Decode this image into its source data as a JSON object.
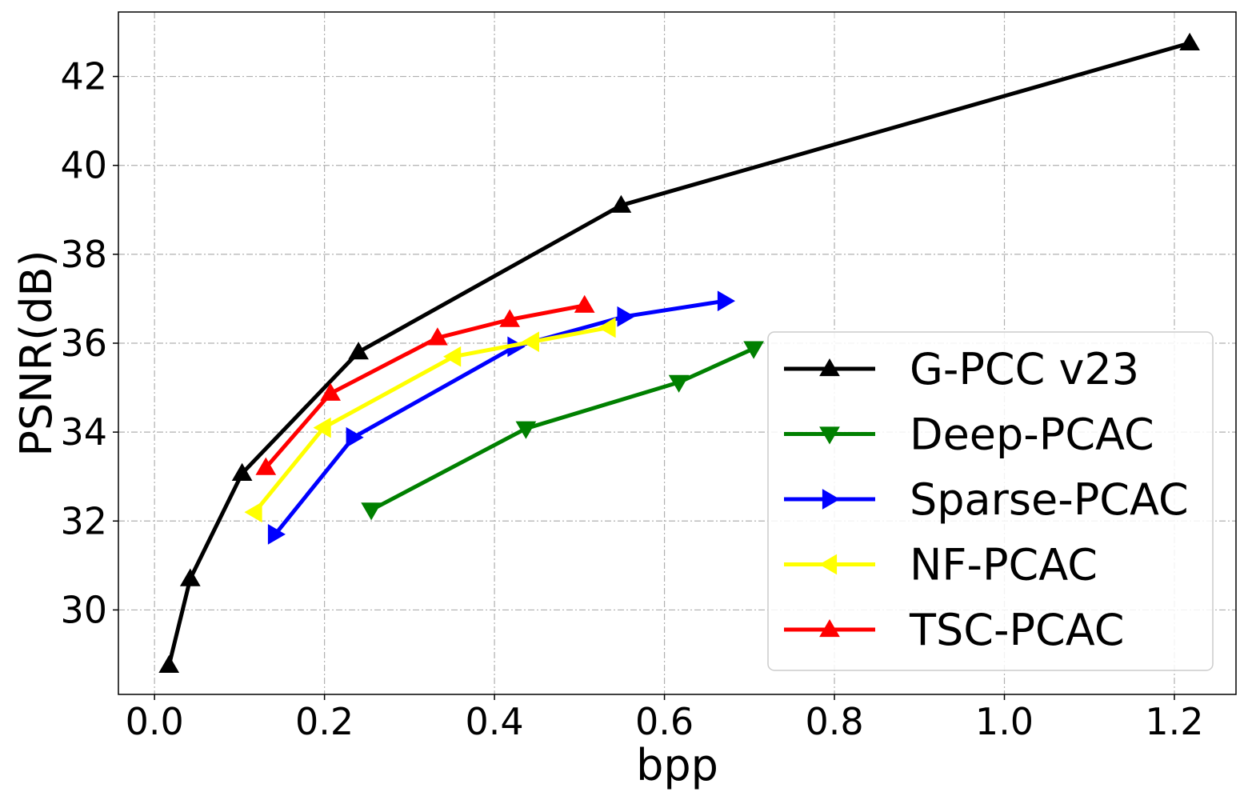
{
  "chart_data": {
    "type": "line",
    "title": "",
    "xlabel": "bpp",
    "ylabel": "PSNR(dB)",
    "xlim": [
      -0.0425,
      1.2725
    ],
    "ylim": [
      28.1,
      43.45
    ],
    "grid": true,
    "legend_position": "lower-right",
    "xticks": [
      0.0,
      0.2,
      0.4,
      0.6,
      0.8,
      1.0,
      1.2
    ],
    "xtick_labels": [
      "0.0",
      "0.2",
      "0.4",
      "0.6",
      "0.8",
      "1.0",
      "1.2"
    ],
    "yticks": [
      30,
      32,
      34,
      36,
      38,
      40,
      42
    ],
    "ytick_labels": [
      "30",
      "32",
      "34",
      "36",
      "38",
      "40",
      "42"
    ],
    "series": [
      {
        "name": "G-PCC v23",
        "color": "#000000",
        "marker": "triangle-up",
        "x": [
          0.017,
          0.042,
          0.103,
          0.24,
          0.549,
          1.218
        ],
        "y": [
          28.75,
          30.7,
          33.07,
          35.8,
          39.1,
          42.75
        ]
      },
      {
        "name": "Deep-PCAC",
        "color": "#008000",
        "marker": "triangle-down",
        "x": [
          0.255,
          0.437,
          0.617,
          0.705
        ],
        "y": [
          32.25,
          34.08,
          35.12,
          35.88
        ]
      },
      {
        "name": "Sparse-PCAC",
        "color": "#0000ff",
        "marker": "triangle-right",
        "x": [
          0.142,
          0.234,
          0.424,
          0.553,
          0.671
        ],
        "y": [
          31.7,
          33.88,
          35.92,
          36.6,
          36.95
        ]
      },
      {
        "name": "NF-PCAC",
        "color": "#ffff00",
        "marker": "triangle-left",
        "x": [
          0.118,
          0.199,
          0.352,
          0.444,
          0.534
        ],
        "y": [
          32.2,
          34.1,
          35.7,
          36.03,
          36.35
        ]
      },
      {
        "name": "TSC-PCAC",
        "color": "#ff0000",
        "marker": "triangle-up",
        "x": [
          0.131,
          0.207,
          0.333,
          0.418,
          0.506
        ],
        "y": [
          33.2,
          34.87,
          36.12,
          36.53,
          36.85
        ]
      }
    ]
  }
}
